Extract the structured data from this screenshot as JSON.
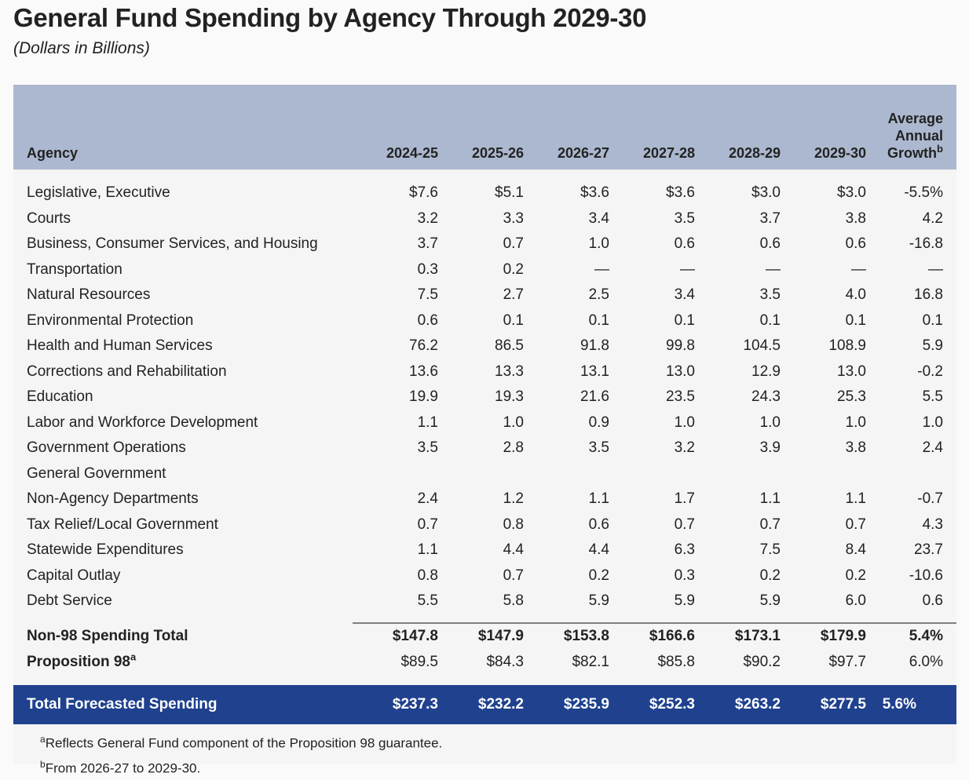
{
  "title": "General Fund Spending by Agency Through 2029-30",
  "subtitle": "(Dollars in Billions)",
  "table": {
    "headers": {
      "agency": "Agency",
      "years": [
        "2024-25",
        "2025-26",
        "2026-27",
        "2027-28",
        "2028-29",
        "2029-30"
      ],
      "growth_line1": "Average",
      "growth_line2": "Annual",
      "growth_line3": "Growth",
      "growth_footnote_marker": "b"
    },
    "rows": [
      {
        "agency": "Legislative, Executive",
        "values": [
          "$7.6",
          "$5.1",
          "$3.6",
          "$3.6",
          "$3.0",
          "$3.0"
        ],
        "growth": "-5.5%"
      },
      {
        "agency": "Courts",
        "values": [
          "3.2",
          "3.3",
          "3.4",
          "3.5",
          "3.7",
          "3.8"
        ],
        "growth": "4.2"
      },
      {
        "agency": "Business, Consumer Services, and Housing",
        "values": [
          "3.7",
          "0.7",
          "1.0",
          "0.6",
          "0.6",
          "0.6"
        ],
        "growth": "-16.8"
      },
      {
        "agency": "Transportation",
        "values": [
          "0.3",
          "0.2",
          "—",
          "—",
          "—",
          "—"
        ],
        "growth": "—"
      },
      {
        "agency": "Natural Resources",
        "values": [
          "7.5",
          "2.7",
          "2.5",
          "3.4",
          "3.5",
          "4.0"
        ],
        "growth": "16.8"
      },
      {
        "agency": "Environmental Protection",
        "values": [
          "0.6",
          "0.1",
          "0.1",
          "0.1",
          "0.1",
          "0.1"
        ],
        "growth": "0.1"
      },
      {
        "agency": "Health and Human Services",
        "values": [
          "76.2",
          "86.5",
          "91.8",
          "99.8",
          "104.5",
          "108.9"
        ],
        "growth": "5.9"
      },
      {
        "agency": "Corrections and Rehabilitation",
        "values": [
          "13.6",
          "13.3",
          "13.1",
          "13.0",
          "12.9",
          "13.0"
        ],
        "growth": "-0.2"
      },
      {
        "agency": "Education",
        "values": [
          "19.9",
          "19.3",
          "21.6",
          "23.5",
          "24.3",
          "25.3"
        ],
        "growth": "5.5"
      },
      {
        "agency": "Labor and Workforce Development",
        "values": [
          "1.1",
          "1.0",
          "0.9",
          "1.0",
          "1.0",
          "1.0"
        ],
        "growth": "1.0"
      },
      {
        "agency": "Government Operations",
        "values": [
          "3.5",
          "2.8",
          "3.5",
          "3.2",
          "3.9",
          "3.8"
        ],
        "growth": "2.4"
      },
      {
        "agency": "General Government",
        "values": [
          "",
          "",
          "",
          "",
          "",
          ""
        ],
        "growth": ""
      },
      {
        "agency": "Non-Agency Departments",
        "values": [
          "2.4",
          "1.2",
          "1.1",
          "1.7",
          "1.1",
          "1.1"
        ],
        "growth": "-0.7"
      },
      {
        "agency": "Tax Relief/Local Government",
        "values": [
          "0.7",
          "0.8",
          "0.6",
          "0.7",
          "0.7",
          "0.7"
        ],
        "growth": "4.3"
      },
      {
        "agency": "Statewide Expenditures",
        "values": [
          "1.1",
          "4.4",
          "4.4",
          "6.3",
          "7.5",
          "8.4"
        ],
        "growth": "23.7"
      },
      {
        "agency": "Capital Outlay",
        "values": [
          "0.8",
          "0.7",
          "0.2",
          "0.3",
          "0.2",
          "0.2"
        ],
        "growth": "-10.6"
      },
      {
        "agency": "Debt Service",
        "values": [
          "5.5",
          "5.8",
          "5.9",
          "5.9",
          "5.9",
          "6.0"
        ],
        "growth": "0.6"
      }
    ],
    "non98_total": {
      "label": "Non-98 Spending Total",
      "values": [
        "$147.8",
        "$147.9",
        "$153.8",
        "$166.6",
        "$173.1",
        "$179.9"
      ],
      "growth": "5.4%"
    },
    "prop98": {
      "label": "Proposition 98",
      "footnote_marker": "a",
      "values": [
        "$89.5",
        "$84.3",
        "$82.1",
        "$85.8",
        "$90.2",
        "$97.7"
      ],
      "growth": "6.0%"
    },
    "grand_total": {
      "label": "Total Forecasted Spending",
      "values": [
        "$237.3",
        "$232.2",
        "$235.9",
        "$252.3",
        "$263.2",
        "$277.5"
      ],
      "growth": "5.6%"
    }
  },
  "footnotes": [
    {
      "marker": "a",
      "text": "Reflects General Fund component of the Proposition 98 guarantee."
    },
    {
      "marker": "b",
      "text": "From 2026-27 to 2029-30."
    }
  ],
  "colors": {
    "header_band": "#abb8cf",
    "total_band": "#1f418e",
    "panel_background": "#f5f5f5"
  }
}
